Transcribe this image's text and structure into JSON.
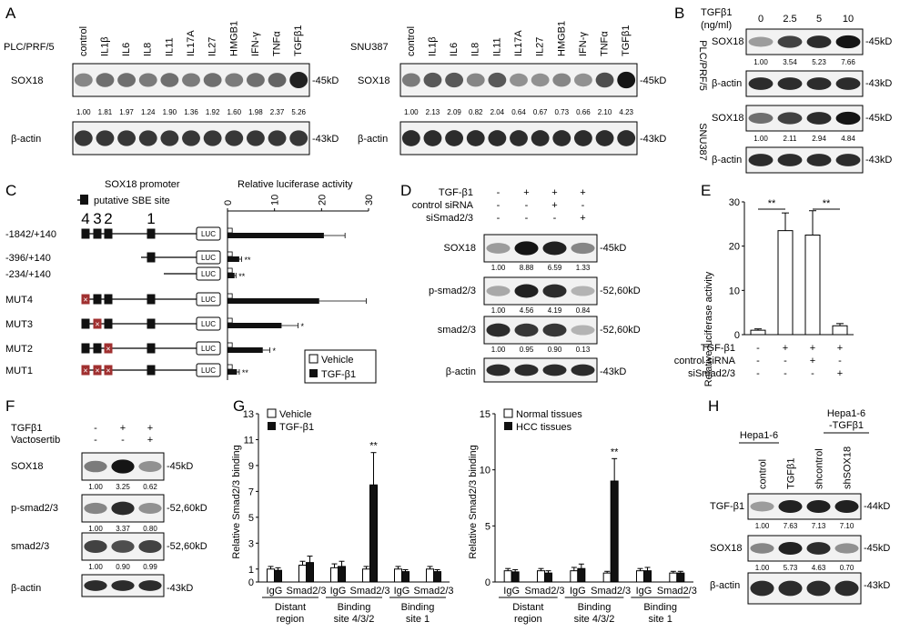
{
  "panels": {
    "A": {
      "letter": "A",
      "left": {
        "cell_line": "PLC/PRF/5",
        "lanes": [
          "control",
          "IL1β",
          "IL6",
          "IL8",
          "IL11",
          "IL17A",
          "IL27",
          "HMGB1",
          "IFN-γ",
          "TNFα",
          "TGFβ1"
        ],
        "rows": [
          {
            "label": "SOX18",
            "size": "-45kD",
            "values": [
              "1.00",
              "1.81",
              "1.97",
              "1.24",
              "1.90",
              "1.36",
              "1.92",
              "1.60",
              "1.98",
              "2.37",
              "5.26"
            ],
            "intensity": [
              0.45,
              0.55,
              0.55,
              0.5,
              0.55,
              0.5,
              0.55,
              0.5,
              0.55,
              0.6,
              0.9
            ]
          },
          {
            "label": "β-actin",
            "size": "-43kD",
            "intensity": [
              0.8,
              0.8,
              0.8,
              0.8,
              0.8,
              0.8,
              0.8,
              0.8,
              0.8,
              0.8,
              0.8
            ]
          }
        ]
      },
      "right": {
        "cell_line": "SNU387",
        "lanes": [
          "control",
          "IL1β",
          "IL6",
          "IL8",
          "IL11",
          "IL17A",
          "IL27",
          "HMGB1",
          "IFN-γ",
          "TNFα",
          "TGFβ1"
        ],
        "rows": [
          {
            "label": "SOX18",
            "size": "-45kD",
            "values": [
              "1.00",
              "2.13",
              "2.09",
              "0.82",
              "2.04",
              "0.64",
              "0.67",
              "0.73",
              "0.66",
              "2.10",
              "4.23"
            ],
            "intensity": [
              0.5,
              0.65,
              0.65,
              0.45,
              0.65,
              0.4,
              0.4,
              0.45,
              0.4,
              0.7,
              0.95
            ]
          },
          {
            "label": "β-actin",
            "size": "-43kD",
            "intensity": [
              0.85,
              0.85,
              0.85,
              0.85,
              0.85,
              0.85,
              0.85,
              0.85,
              0.85,
              0.85,
              0.85
            ]
          }
        ]
      }
    },
    "B": {
      "letter": "B",
      "treatment": "TGFβ1",
      "unit": "(ng/ml)",
      "doses": [
        "0",
        "2.5",
        "5",
        "10"
      ],
      "blocks": [
        {
          "cell_line": "PLC/PRF/5",
          "rows": [
            {
              "label": "SOX18",
              "size": "-45kD",
              "values": [
                "1.00",
                "3.54",
                "5.23",
                "7.66"
              ],
              "intensity": [
                0.35,
                0.75,
                0.85,
                0.95
              ]
            },
            {
              "label": "β-actin",
              "size": "-43kD",
              "intensity": [
                0.85,
                0.85,
                0.85,
                0.85
              ]
            }
          ]
        },
        {
          "cell_line": "SNU387",
          "rows": [
            {
              "label": "SOX18",
              "size": "-45kD",
              "values": [
                "1.00",
                "2.11",
                "2.94",
                "4.84"
              ],
              "intensity": [
                0.55,
                0.75,
                0.85,
                0.95
              ]
            },
            {
              "label": "β-actin",
              "size": "-43kD",
              "intensity": [
                0.85,
                0.85,
                0.85,
                0.85
              ]
            }
          ]
        }
      ]
    },
    "C": {
      "letter": "C",
      "promoter_title": "SOX18 promoter",
      "sbe_label": "putative SBE site",
      "site_numbers": [
        "4",
        "3",
        "2",
        "1"
      ],
      "reporter": "LUC",
      "chart_title": "Relative luciferase activity",
      "legend": [
        "Vehicle",
        "TGF-β1"
      ],
      "chart_data": {
        "type": "bar",
        "orientation": "horizontal",
        "title": "Relative luciferase activity",
        "xlim": [
          0,
          30
        ],
        "ticks": [
          "0",
          "10",
          "20",
          "30"
        ],
        "categories": [
          "-1842/+140",
          "-396/+140",
          "-234/+140",
          "MUT4",
          "MUT3",
          "MUT2",
          "MUT1"
        ],
        "series": [
          {
            "name": "Vehicle",
            "values": [
              1,
              1,
              1,
              1,
              1,
              1,
              1
            ],
            "errors": [
              0.2,
              0.2,
              0.2,
              0.2,
              0.2,
              0.2,
              0.2
            ]
          },
          {
            "name": "TGF-β1",
            "values": [
              20.5,
              2.5,
              1.5,
              19.5,
              11.5,
              7.5,
              2.0
            ],
            "errors": [
              4.5,
              0.5,
              0.3,
              10.0,
              3.5,
              1.5,
              0.5
            ]
          }
        ],
        "annotations": [
          "",
          "**",
          "**",
          "",
          "*",
          "*",
          "**"
        ]
      }
    },
    "D": {
      "letter": "D",
      "conditions": [
        {
          "label": "TGF-β1",
          "signs": [
            "-",
            "+",
            "+",
            "+"
          ]
        },
        {
          "label": "control siRNA",
          "signs": [
            "-",
            "-",
            "+",
            "-"
          ]
        },
        {
          "label": "siSmad2/3",
          "signs": [
            "-",
            "-",
            "-",
            "+"
          ]
        }
      ],
      "rows": [
        {
          "label": "SOX18",
          "size": "-45kD",
          "values": [
            "1.00",
            "8.88",
            "6.59",
            "1.33"
          ],
          "intensity": [
            0.35,
            0.95,
            0.9,
            0.45
          ]
        },
        {
          "label": "p-smad2/3",
          "size": "-52,60kD",
          "values": [
            "1.00",
            "4.56",
            "4.19",
            "0.84"
          ],
          "intensity": [
            0.3,
            0.9,
            0.85,
            0.25
          ]
        },
        {
          "label": "smad2/3",
          "size": "-52,60kD",
          "values": [
            "1.00",
            "0.95",
            "0.90",
            "0.13"
          ],
          "intensity": [
            0.85,
            0.8,
            0.8,
            0.25
          ]
        },
        {
          "label": "β-actin",
          "size": "-43kD",
          "intensity": [
            0.85,
            0.85,
            0.85,
            0.85
          ]
        }
      ]
    },
    "E": {
      "letter": "E",
      "ylabel": "Relative luciferase activity",
      "conditions": [
        {
          "label": "TGF-β1",
          "signs": [
            "-",
            "+",
            "+",
            "+"
          ]
        },
        {
          "label": "control siRNA",
          "signs": [
            "-",
            "-",
            "+",
            "-"
          ]
        },
        {
          "label": "siSmad2/3",
          "signs": [
            "-",
            "-",
            "-",
            "+"
          ]
        }
      ],
      "sig": [
        "**",
        "**"
      ],
      "chart_data": {
        "type": "bar",
        "ylim": [
          0,
          30
        ],
        "ticks": [
          "0",
          "10",
          "20",
          "30"
        ],
        "values": [
          1.0,
          23.5,
          22.5,
          2.0
        ],
        "errors": [
          0.3,
          4.0,
          5.5,
          0.5
        ]
      }
    },
    "F": {
      "letter": "F",
      "conditions": [
        {
          "label": "TGFβ1",
          "signs": [
            "-",
            "+",
            "+"
          ]
        },
        {
          "label": "Vactosertib",
          "signs": [
            "-",
            "-",
            "+"
          ]
        }
      ],
      "rows": [
        {
          "label": "SOX18",
          "size": "-45kD",
          "values": [
            "1.00",
            "3.25",
            "0.62"
          ],
          "intensity": [
            0.5,
            0.95,
            0.4
          ]
        },
        {
          "label": "p-smad2/3",
          "size": "-52,60kD",
          "values": [
            "1.00",
            "3.37",
            "0.80"
          ],
          "intensity": [
            0.45,
            0.85,
            0.4
          ]
        },
        {
          "label": "smad2/3",
          "size": "-52,60kD",
          "values": [
            "1.00",
            "0.90",
            "0.99"
          ],
          "intensity": [
            0.75,
            0.7,
            0.75
          ]
        },
        {
          "label": "β-actin",
          "size": "-43kD",
          "intensity": [
            0.85,
            0.85,
            0.85
          ]
        }
      ]
    },
    "G": {
      "letter": "G",
      "ylabel": "Relative Smad2/3 binding",
      "left": {
        "legend": [
          "Vehicle",
          "TGF-β1"
        ],
        "chart_data": {
          "type": "bar",
          "ylim": [
            0,
            13
          ],
          "ticks": [
            "0",
            "1",
            "3",
            "5",
            "7",
            "9",
            "11",
            "13"
          ],
          "groups": [
            "Distant region",
            "Binding site 4/3/2",
            "Binding site 1"
          ],
          "group_lines": [
            [
              "Distant",
              "region"
            ],
            [
              "Binding",
              "site 4/3/2"
            ],
            [
              "Binding",
              "site 1"
            ]
          ],
          "subcategories": [
            "IgG",
            "Smad2/3"
          ],
          "series": [
            {
              "name": "Vehicle",
              "values": [
                1.0,
                1.3,
                1.1,
                1.0,
                1.0,
                1.0
              ],
              "errors": [
                0.2,
                0.3,
                0.3,
                0.2,
                0.2,
                0.2
              ]
            },
            {
              "name": "TGF-β1",
              "values": [
                0.9,
                1.5,
                1.2,
                7.5,
                0.8,
                0.8
              ],
              "errors": [
                0.2,
                0.5,
                0.4,
                2.5,
                0.15,
                0.15
              ]
            }
          ],
          "annotations": [
            "",
            "",
            "",
            "**",
            "",
            ""
          ]
        }
      },
      "right": {
        "legend": [
          "Normal tissues",
          "HCC tissues"
        ],
        "chart_data": {
          "type": "bar",
          "ylim": [
            0,
            15
          ],
          "ticks": [
            "0",
            "5",
            "10",
            "15"
          ],
          "groups": [
            "Distant region",
            "Binding site 4/3/2",
            "Binding site 1"
          ],
          "group_lines": [
            [
              "Distant",
              "region"
            ],
            [
              "Binding",
              "site 4/3/2"
            ],
            [
              "Binding",
              "site 1"
            ]
          ],
          "subcategories": [
            "IgG",
            "Smad2/3"
          ],
          "series": [
            {
              "name": "Normal tissues",
              "values": [
                1.0,
                1.0,
                1.0,
                0.8,
                1.0,
                0.8
              ],
              "errors": [
                0.2,
                0.2,
                0.3,
                0.15,
                0.2,
                0.15
              ]
            },
            {
              "name": "HCC tissues",
              "values": [
                0.9,
                0.8,
                1.2,
                9.0,
                1.0,
                0.8
              ],
              "errors": [
                0.2,
                0.2,
                0.4,
                2.0,
                0.3,
                0.15
              ]
            }
          ],
          "annotations": [
            "",
            "",
            "",
            "**",
            "",
            ""
          ]
        }
      }
    },
    "H": {
      "letter": "H",
      "group1": "Hepa1-6",
      "group2_line1": "Hepa1-6",
      "group2_line2": "-TGFβ1",
      "lanes": [
        "control",
        "TGFβ1",
        "shcontrol",
        "shSOX18"
      ],
      "rows": [
        {
          "label": "TGF-β1",
          "size": "-44kD",
          "values": [
            "1.00",
            "7.63",
            "7.13",
            "7.10"
          ],
          "intensity": [
            0.35,
            0.9,
            0.9,
            0.9
          ]
        },
        {
          "label": "SOX18",
          "size": "-45kD",
          "values": [
            "1.00",
            "5.73",
            "4.63",
            "0.70"
          ],
          "intensity": [
            0.45,
            0.9,
            0.85,
            0.4
          ]
        },
        {
          "label": "β-actin",
          "size": "-43kD",
          "intensity": [
            0.85,
            0.85,
            0.85,
            0.85
          ]
        }
      ]
    }
  }
}
